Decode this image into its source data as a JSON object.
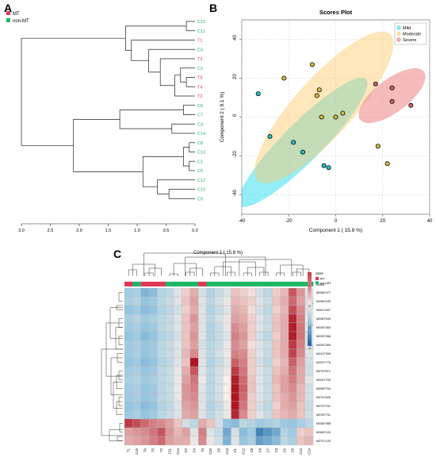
{
  "panels": {
    "a": "A",
    "b": "B",
    "c": "C"
  },
  "colors": {
    "mt": "#e0365a",
    "non_mt": "#1fb565"
  },
  "chart_data": [
    {
      "type": "dendrogram",
      "panel": "A",
      "legend": [
        {
          "label": "MT",
          "color": "#e0365a"
        },
        {
          "label": "non-MT",
          "color": "#1fb565"
        }
      ],
      "leaves": [
        {
          "label": "C15",
          "group": "non-MT"
        },
        {
          "label": "C11",
          "group": "non-MT"
        },
        {
          "label": "T1",
          "group": "MT"
        },
        {
          "label": "C4",
          "group": "non-MT"
        },
        {
          "label": "T3",
          "group": "MT"
        },
        {
          "label": "C2",
          "group": "non-MT"
        },
        {
          "label": "T5",
          "group": "MT"
        },
        {
          "label": "T4",
          "group": "MT"
        },
        {
          "label": "T2",
          "group": "MT"
        },
        {
          "label": "C6",
          "group": "non-MT"
        },
        {
          "label": "C7",
          "group": "non-MT"
        },
        {
          "label": "C3",
          "group": "non-MT"
        },
        {
          "label": "C14",
          "group": "non-MT"
        },
        {
          "label": "C8",
          "group": "non-MT"
        },
        {
          "label": "C13",
          "group": "non-MT"
        },
        {
          "label": "C1",
          "group": "non-MT"
        },
        {
          "label": "C5",
          "group": "non-MT"
        },
        {
          "label": "C12",
          "group": "non-MT"
        },
        {
          "label": "C10",
          "group": "non-MT"
        },
        {
          "label": "C9",
          "group": "non-MT"
        }
      ],
      "merges": [
        {
          "a": "C15",
          "b": "C11",
          "h": 0.15
        },
        {
          "a": "T5",
          "b": "T4",
          "h": 0.15
        },
        {
          "a": "C2",
          "b": [
            "T5",
            "T4"
          ],
          "h": 0.25
        },
        {
          "a": [
            "C2",
            "T5",
            "T4"
          ],
          "b": "T2",
          "h": 0.35
        },
        {
          "a": "T3",
          "b": [
            "C2",
            "T5",
            "T4",
            "T2"
          ],
          "h": 0.6
        },
        {
          "a": "C4",
          "b": [
            "T3",
            "C2",
            "T5",
            "T4",
            "T2"
          ],
          "h": 0.8
        },
        {
          "a": "T1",
          "b": [
            "C4",
            "T3",
            "C2",
            "T5",
            "T4",
            "T2"
          ],
          "h": 1.1
        },
        {
          "a": [
            "C15",
            "C11"
          ],
          "b": [
            "T1",
            "C4",
            "T3",
            "C2",
            "T5",
            "T4",
            "T2"
          ],
          "h": 1.2
        },
        {
          "a": "C6",
          "b": "C7",
          "h": 0.2
        },
        {
          "a": "C3",
          "b": "C14",
          "h": 0.4
        },
        {
          "a": [
            "C6",
            "C7"
          ],
          "b": [
            "C3",
            "C14"
          ],
          "h": 1.3
        },
        {
          "a": "C8",
          "b": "C13",
          "h": 0.1
        },
        {
          "a": "C1",
          "b": "C5",
          "h": 0.1
        },
        {
          "a": [
            "C8",
            "C13"
          ],
          "b": [
            "C1",
            "C5"
          ],
          "h": 0.2
        },
        {
          "a": "C10",
          "b": "C9",
          "h": 0.45
        },
        {
          "a": "C12",
          "b": [
            "C10",
            "C9"
          ],
          "h": 0.65
        },
        {
          "a": [
            "C8",
            "C13",
            "C1",
            "C5"
          ],
          "b": [
            "C12",
            "C10",
            "C9"
          ],
          "h": 0.9
        },
        {
          "a": [
            "C6",
            "C7",
            "C3",
            "C14"
          ],
          "b": [
            "C8",
            "C13",
            "C1",
            "C5",
            "C12",
            "C10",
            "C9"
          ],
          "h": 2.1
        },
        {
          "a": [
            "C15",
            "C11",
            "T1",
            "C4",
            "T3",
            "C2",
            "T5",
            "T4",
            "T2"
          ],
          "b": [
            "C6",
            "C7",
            "C3",
            "C14",
            "C8",
            "C13",
            "C1",
            "C5",
            "C12",
            "C10",
            "C9"
          ],
          "h": 3.0
        }
      ],
      "xticks": [
        3.0,
        2.5,
        2.0,
        1.5,
        1.0,
        0.5,
        0.0
      ],
      "xtick_labels": [
        "3.0",
        "2.5",
        "2.0",
        "1.5",
        "1.0",
        "0.5",
        "0.0"
      ],
      "xlim": [
        3.0,
        0.0
      ]
    },
    {
      "type": "scatter",
      "panel": "B",
      "title": "Scores Plot",
      "xlabel": "Component 1 ( 15.8 %)",
      "ylabel": "Component 2 ( 9.1 %)",
      "xlim": [
        -40,
        40
      ],
      "ylim": [
        -50,
        50
      ],
      "xticks": [
        -40,
        -20,
        0,
        20,
        40
      ],
      "yticks": [
        -40,
        -20,
        0,
        20,
        40
      ],
      "grid": true,
      "legend_position": "top-right",
      "series": [
        {
          "name": "Mild",
          "color": "#22c5cf",
          "fill": "rgba(0,215,235,0.42)",
          "ellipse": {
            "cx": -14,
            "cy": -13,
            "rx": 38,
            "ry": 10,
            "angle_deg": -45
          },
          "x": [
            -33,
            -28,
            -18,
            -14,
            -5,
            -3
          ],
          "y": [
            12,
            -10,
            -13,
            -18,
            -25,
            -26
          ]
        },
        {
          "name": "Moderate",
          "color": "#d8c23c",
          "fill": "rgba(255,200,105,0.45)",
          "ellipse": {
            "cx": -5,
            "cy": 5,
            "rx": 42,
            "ry": 15,
            "angle_deg": -48
          },
          "x": [
            -22,
            -10,
            -8,
            -7,
            -6,
            0,
            3,
            18,
            22
          ],
          "y": [
            20,
            27,
            11,
            14,
            0,
            0,
            2,
            -15,
            -24
          ]
        },
        {
          "name": "Severe",
          "color": "#d96060",
          "fill": "rgba(238,120,120,0.5)",
          "ellipse": {
            "cx": 24,
            "cy": 11,
            "rx": 17,
            "ry": 8.5,
            "angle_deg": -37
          },
          "x": [
            17,
            24,
            24,
            32
          ],
          "y": [
            17,
            15,
            8,
            6
          ]
        }
      ]
    },
    {
      "type": "heatmap",
      "panel": "C",
      "title": "Component 1 ( 15.8 %)",
      "class_label": "class",
      "legend": {
        "title": "class",
        "items": [
          {
            "label": "MT",
            "color": "#e0365a"
          },
          {
            "label": "non-MT",
            "color": "#1fb565"
          }
        ]
      },
      "colorbar": {
        "ticks": [
          1,
          0,
          -1,
          -2
        ],
        "tick_labels": [
          "1",
          "0",
          "-1",
          "-2"
        ],
        "range": [
          -2,
          1.5
        ]
      },
      "columns": [
        "T1",
        "C15",
        "T4",
        "T5",
        "T2",
        "C11",
        "C14",
        "C2",
        "C4",
        "T3",
        "C10",
        "C5",
        "C13",
        "C1",
        "C12",
        "C8",
        "C9",
        "C7",
        "C3",
        "C6",
        "C8b",
        "C14b",
        "C14c"
      ],
      "column_labels": [
        "T1",
        "C15",
        "T4",
        "T5",
        "T2",
        "C11",
        "C14",
        "C2",
        "C4",
        "T3",
        "C10",
        "C5",
        "C13",
        "C1",
        "C12",
        "C8",
        "C9",
        "C7",
        "C3",
        "C6",
        "C8",
        "C14",
        "C14"
      ],
      "column_groups": [
        "MT",
        "non-MT",
        "MT",
        "MT",
        "MT",
        "non-MT",
        "non-MT",
        "non-MT",
        "non-MT",
        "MT",
        "non-MT",
        "non-MT",
        "non-MT",
        "non-MT",
        "non-MT",
        "non-MT",
        "non-MT",
        "non-MT",
        "non-MT",
        "non-MT",
        "non-MT",
        "non-MT",
        "non-MT"
      ],
      "rows": [
        "M0087477",
        "M0087649",
        "M0017697",
        "M0087540",
        "M0257464",
        "M0097456",
        "M0247465",
        "M0107399",
        "M0297776",
        "M0797871",
        "M0027705",
        "M0087754",
        "M0747626",
        "M0707701",
        "M0787701",
        "M0387988",
        "M0687120",
        "M0707120"
      ],
      "values": [
        [
          -0.8,
          -0.7,
          -1.1,
          -1.0,
          -0.6,
          -0.5,
          -0.2,
          0.2,
          0.5,
          -0.3,
          -0.6,
          -0.4,
          -0.2,
          0.3,
          0.2,
          0.1,
          -0.3,
          -0.5,
          0.2,
          0.4,
          1.3,
          0.7,
          -0.2
        ],
        [
          -0.7,
          -0.6,
          -0.9,
          -0.8,
          -0.5,
          -0.4,
          -0.2,
          0.3,
          0.6,
          -0.2,
          -0.5,
          -0.3,
          -0.1,
          0.4,
          0.3,
          0.2,
          -0.2,
          -0.4,
          0.3,
          0.5,
          1.1,
          0.6,
          -0.3
        ],
        [
          -0.9,
          -0.8,
          -1.0,
          -0.9,
          -0.6,
          -0.5,
          -0.3,
          0.2,
          0.5,
          -0.2,
          -0.6,
          -0.4,
          -0.2,
          0.5,
          0.4,
          0.1,
          -0.3,
          -0.5,
          0.2,
          0.4,
          1.4,
          0.8,
          -0.2
        ],
        [
          -0.7,
          -0.6,
          -0.8,
          -0.7,
          -0.5,
          -0.4,
          -0.2,
          0.3,
          0.7,
          -0.2,
          -0.5,
          -0.3,
          -0.1,
          0.6,
          0.5,
          0.2,
          -0.2,
          -0.4,
          0.3,
          0.5,
          1.8,
          0.9,
          -0.1
        ],
        [
          -0.8,
          -0.7,
          -0.9,
          -0.8,
          -0.5,
          -0.4,
          -0.2,
          0.3,
          0.6,
          -0.2,
          -0.6,
          -0.4,
          -0.1,
          0.8,
          0.6,
          0.2,
          -0.2,
          -0.4,
          0.3,
          0.5,
          1.9,
          1.0,
          -0.1
        ],
        [
          -0.9,
          -0.8,
          -1.0,
          -0.9,
          -0.6,
          -0.5,
          -0.3,
          0.3,
          0.7,
          -0.2,
          -0.6,
          -0.4,
          -0.2,
          0.9,
          0.7,
          0.2,
          -0.3,
          -0.5,
          0.2,
          0.5,
          1.9,
          1.0,
          -0.2
        ],
        [
          -0.8,
          -0.7,
          -0.9,
          -0.8,
          -0.5,
          -0.4,
          -0.2,
          0.3,
          0.6,
          -0.3,
          -0.5,
          -0.4,
          -0.1,
          0.8,
          0.6,
          0.1,
          -0.2,
          -0.4,
          0.3,
          0.5,
          1.6,
          0.9,
          -0.2
        ],
        [
          -0.8,
          -0.7,
          -0.9,
          -0.8,
          -0.5,
          -0.4,
          -0.2,
          0.4,
          0.8,
          -0.2,
          -0.5,
          -0.3,
          -0.1,
          0.9,
          0.8,
          0.2,
          -0.2,
          -0.4,
          0.3,
          0.5,
          1.5,
          0.8,
          -0.2
        ],
        [
          -0.9,
          -0.8,
          -1.0,
          -0.9,
          -0.6,
          -0.5,
          -0.2,
          0.3,
          2.0,
          -0.2,
          -0.6,
          -0.4,
          -0.2,
          1.2,
          0.9,
          0.2,
          -0.3,
          -0.5,
          0.2,
          0.4,
          1.2,
          0.6,
          -0.3
        ],
        [
          -0.8,
          -0.7,
          -0.9,
          -0.8,
          -0.5,
          -0.4,
          -0.1,
          0.5,
          1.3,
          -0.2,
          -0.5,
          -0.3,
          -0.1,
          1.6,
          1.0,
          0.2,
          -0.2,
          -0.4,
          0.3,
          0.5,
          1.0,
          0.5,
          -0.3
        ],
        [
          -0.7,
          -0.6,
          -0.8,
          -0.7,
          -0.5,
          -0.4,
          -0.1,
          0.6,
          1.0,
          -0.1,
          -0.5,
          -0.3,
          0.0,
          1.9,
          1.1,
          0.3,
          -0.2,
          -0.4,
          0.4,
          0.6,
          0.9,
          0.5,
          -0.2
        ],
        [
          -0.8,
          -0.7,
          -0.9,
          -0.8,
          -0.5,
          -0.4,
          -0.1,
          0.7,
          0.9,
          -0.2,
          -0.5,
          -0.3,
          0.0,
          2.2,
          1.2,
          0.3,
          -0.2,
          -0.4,
          0.3,
          0.6,
          0.8,
          0.4,
          -0.3
        ],
        [
          -0.8,
          -0.7,
          -0.9,
          -0.8,
          -0.5,
          -0.4,
          -0.1,
          0.7,
          0.8,
          -0.2,
          -0.5,
          -0.3,
          0.0,
          2.3,
          1.1,
          0.2,
          -0.2,
          -0.4,
          0.3,
          0.5,
          0.7,
          0.4,
          -0.3
        ],
        [
          -0.9,
          -0.8,
          -1.0,
          -0.9,
          -0.6,
          -0.5,
          -0.2,
          0.6,
          0.7,
          -0.2,
          -0.6,
          -0.4,
          -0.1,
          2.3,
          1.0,
          0.2,
          -0.3,
          -0.5,
          0.2,
          0.5,
          0.6,
          0.3,
          -0.4
        ],
        [
          -0.8,
          -0.7,
          -0.9,
          -0.8,
          -0.5,
          -0.4,
          -0.2,
          0.5,
          0.6,
          -0.2,
          -0.5,
          -0.3,
          -0.1,
          1.8,
          0.8,
          0.2,
          -0.2,
          -0.4,
          0.3,
          0.4,
          0.5,
          0.3,
          -0.3
        ],
        [
          1.6,
          1.4,
          1.1,
          0.9,
          0.8,
          0.6,
          0.3,
          -0.3,
          -0.5,
          0.5,
          0.3,
          -0.3,
          -0.9,
          -1.0,
          -0.5,
          -0.6,
          -0.8,
          -0.7,
          -0.6,
          -0.8,
          -0.9,
          -0.7,
          -0.5
        ],
        [
          0.6,
          0.7,
          0.8,
          1.0,
          1.3,
          0.7,
          0.4,
          0.6,
          -0.2,
          0.9,
          -0.2,
          -0.4,
          -1.2,
          -0.3,
          -1.0,
          -0.8,
          -1.6,
          -1.4,
          -1.2,
          -0.6,
          -0.8,
          0.2,
          0.3
        ],
        [
          0.5,
          0.6,
          0.7,
          0.9,
          1.1,
          0.6,
          0.5,
          0.5,
          -0.1,
          0.8,
          -0.1,
          -0.3,
          -1.1,
          -0.2,
          -0.9,
          -0.7,
          -1.3,
          -1.2,
          -1.0,
          -0.5,
          -0.7,
          0.3,
          0.4
        ]
      ]
    }
  ]
}
